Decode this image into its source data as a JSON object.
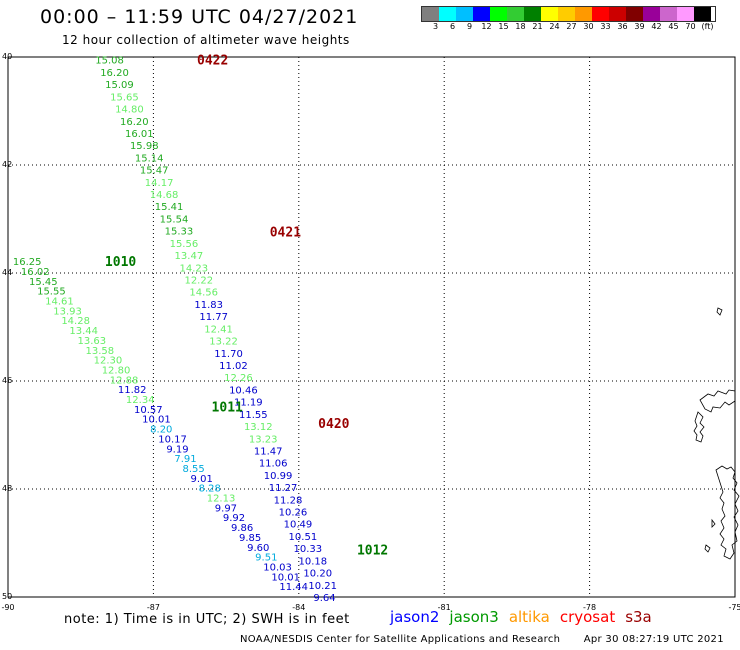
{
  "header": {
    "title": "00:00 – 11:59 UTC 04/27/2021",
    "subtitle": "12 hour collection of altimeter wave heights"
  },
  "legend": {
    "colors": [
      "#7f7f7f",
      "#00ffff",
      "#00bfff",
      "#0000ff",
      "#00ff00",
      "#33cc33",
      "#008000",
      "#ffff00",
      "#ffcc00",
      "#ff9900",
      "#ff0000",
      "#cc0000",
      "#800000",
      "#990099",
      "#cc66cc",
      "#ff99ff",
      "#000000"
    ],
    "labels": [
      "3",
      "6",
      "9",
      "12",
      "15",
      "18",
      "21",
      "24",
      "27",
      "30",
      "33",
      "36",
      "39",
      "42",
      "45",
      "70"
    ],
    "unit": "(ft)"
  },
  "axes": {
    "lat_labels": [
      "40",
      "42",
      "44",
      "46",
      "48",
      "50"
    ],
    "lon_labels": [
      "-90",
      "-87",
      "-84",
      "-81",
      "-78",
      "-75"
    ]
  },
  "colors": {
    "lightgreen": "#66ee66",
    "green": "#22aa22",
    "darkblue": "#0000cc",
    "cyan": "#00aadd",
    "time_red": "#990000",
    "time_green": "#007700"
  },
  "time_labels": [
    {
      "text": "0422",
      "color": "time_red",
      "lat": 40.05,
      "lon": -86.1
    },
    {
      "text": "0421",
      "color": "time_red",
      "lat": 43.23,
      "lon": -84.6
    },
    {
      "text": "1010",
      "color": "time_green",
      "lat": 43.78,
      "lon": -88.0
    },
    {
      "text": "1011",
      "color": "time_green",
      "lat": 46.47,
      "lon": -85.8
    },
    {
      "text": "0420",
      "color": "time_red",
      "lat": 46.78,
      "lon": -83.6
    },
    {
      "text": "1012",
      "color": "time_green",
      "lat": 49.12,
      "lon": -82.8
    }
  ],
  "track_a": {
    "values": [
      "15.08",
      "16.20",
      "15.09",
      "15.65",
      "14.80",
      "16.20",
      "16.01",
      "15.98",
      "15.14",
      "15.47",
      "14.17",
      "14.68",
      "15.41",
      "15.54",
      "15.33",
      "15.56",
      "13.47",
      "14.23",
      "12.22",
      "14.56",
      "11.83",
      "11.77",
      "12.41",
      "13.22",
      "11.70",
      "11.02",
      "12.26",
      "10.46",
      "11.19",
      "11.55",
      "13.12",
      "13.23",
      "11.47",
      "11.06",
      "10.99",
      "11.27",
      "11.28",
      "10.26",
      "10.49",
      "10.51",
      "10.33",
      "10.18",
      "10.20",
      "10.21",
      "9.64"
    ],
    "colors": [
      "green",
      "green",
      "green",
      "lightgreen",
      "lightgreen",
      "green",
      "green",
      "green",
      "green",
      "green",
      "lightgreen",
      "lightgreen",
      "green",
      "green",
      "green",
      "lightgreen",
      "lightgreen",
      "lightgreen",
      "lightgreen",
      "lightgreen",
      "darkblue",
      "darkblue",
      "lightgreen",
      "lightgreen",
      "darkblue",
      "darkblue",
      "lightgreen",
      "darkblue",
      "darkblue",
      "darkblue",
      "lightgreen",
      "lightgreen",
      "darkblue",
      "darkblue",
      "darkblue",
      "darkblue",
      "darkblue",
      "darkblue",
      "darkblue",
      "darkblue",
      "darkblue",
      "darkblue",
      "darkblue",
      "darkblue",
      "darkblue"
    ],
    "lat_start": 40.05,
    "lat_end": 50.0,
    "lon_start": -88.2,
    "lon_end": -83.7
  },
  "track_b": {
    "values": [
      "16.25",
      "16.02",
      "15.45",
      "15.55",
      "14.61",
      "13.93",
      "14.28",
      "13.44",
      "13.63",
      "13.58",
      "12.30",
      "12.80",
      "12.88",
      "11.82",
      "12.34",
      "10.57",
      "10.01",
      "8.20",
      "10.17",
      "9.19",
      "7.91",
      "8.55",
      "9.01",
      "8.28",
      "12.13",
      "9.97",
      "9.92",
      "9.86",
      "9.85",
      "9.60",
      "9.51",
      "10.03",
      "10.01",
      "11.44"
    ],
    "colors": [
      "green",
      "green",
      "green",
      "green",
      "lightgreen",
      "lightgreen",
      "lightgreen",
      "lightgreen",
      "lightgreen",
      "lightgreen",
      "lightgreen",
      "lightgreen",
      "lightgreen",
      "darkblue",
      "lightgreen",
      "darkblue",
      "darkblue",
      "cyan",
      "darkblue",
      "darkblue",
      "cyan",
      "cyan",
      "darkblue",
      "cyan",
      "lightgreen",
      "darkblue",
      "darkblue",
      "darkblue",
      "darkblue",
      "darkblue",
      "cyan",
      "darkblue",
      "darkblue",
      "darkblue"
    ],
    "lat_start": 43.78,
    "lat_end": 49.8,
    "lon_start": -89.9,
    "lon_end": -84.4
  },
  "footer": {
    "note": "note:  1) Time is in UTC;  2) SWH is in feet",
    "satellites": [
      {
        "name": "jason2",
        "color": "#0000ff"
      },
      {
        "name": "jason3",
        "color": "#009900"
      },
      {
        "name": "altika",
        "color": "#ff9900"
      },
      {
        "name": "cryosat",
        "color": "#ff0000"
      },
      {
        "name": "s3a",
        "color": "#990000"
      }
    ],
    "credit": "NOAA/NESDIS Center for Satellite Applications and Research",
    "timestamp": "Apr 30 08:27:19 UTC 2021"
  }
}
